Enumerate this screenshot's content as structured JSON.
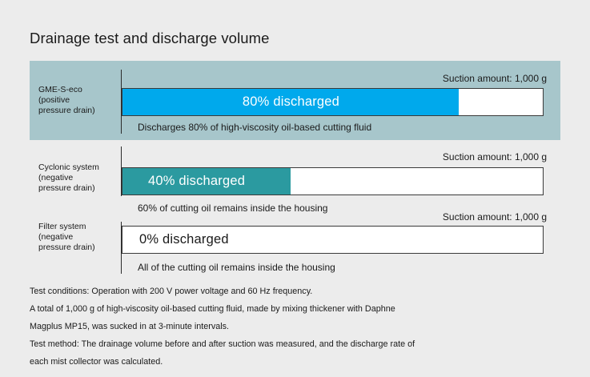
{
  "title": "Drainage test and discharge volume",
  "colors": {
    "background": "#ececec",
    "highlight_band": "#a7c6cb",
    "fill_blue": "#00a9ec",
    "fill_teal": "#2b9aa0"
  },
  "chart_data": {
    "type": "bar",
    "orientation": "horizontal",
    "title": "Drainage test and discharge volume",
    "value_unit": "% discharged",
    "xlim": [
      0,
      100
    ],
    "categories": [
      "GME-S-eco (positive pressure drain)",
      "Cyclonic system (negative pressure drain)",
      "Filter system (negative pressure drain)"
    ],
    "values": [
      80,
      40,
      0
    ],
    "bars": [
      {
        "label_lines": [
          "GME-S-eco",
          "(positive",
          "pressure drain)"
        ],
        "suction": "Suction amount: 1,000 g",
        "value": 80,
        "bar_text": "80% discharged",
        "note": "Discharges 80% of high-viscosity oil-based cutting fluid",
        "fill_color": "#00a9ec",
        "highlighted": true
      },
      {
        "label_lines": [
          "Cyclonic system",
          "(negative",
          "pressure drain)"
        ],
        "suction": "Suction amount: 1,000 g",
        "value": 40,
        "bar_text": "40% discharged",
        "note": "60% of cutting oil remains inside the housing",
        "fill_color": "#2b9aa0",
        "highlighted": false
      },
      {
        "label_lines": [
          "Filter system",
          "(negative",
          "pressure drain)"
        ],
        "suction": "Suction amount: 1,000 g",
        "value": 0,
        "bar_text": "0% discharged",
        "note": "All of the cutting oil remains inside the housing",
        "fill_color": "#00a9ec",
        "highlighted": false
      }
    ]
  },
  "footer": [
    "Test conditions: Operation with 200 V power voltage and 60 Hz frequency.",
    "A total of 1,000 g of high-viscosity oil-based cutting fluid, made by mixing thickener with Daphne",
    "Magplus MP15, was sucked in at 3-minute intervals.",
    "Test method: The drainage volume before and after suction was measured, and the discharge rate of",
    "each mist collector was calculated."
  ]
}
